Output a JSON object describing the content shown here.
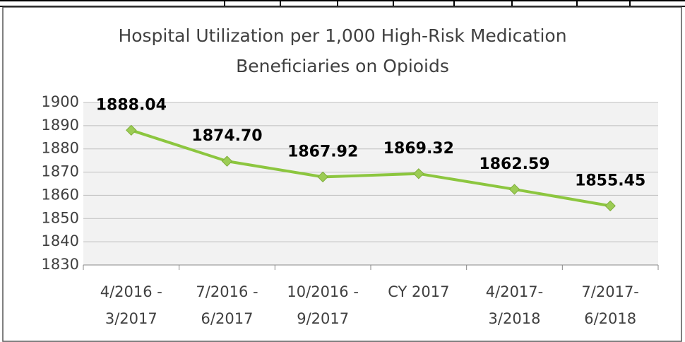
{
  "chart_data": {
    "type": "line",
    "title": [
      "Hospital Utilization per 1,000 High-Risk Medication",
      "Beneficiaries on Opioids"
    ],
    "categories": [
      [
        "4/2016 -",
        "3/2017"
      ],
      [
        "7/2016 -",
        "6/2017"
      ],
      [
        "10/2016 -",
        "9/2017"
      ],
      [
        "CY 2017"
      ],
      [
        "4/2017-",
        "3/2018"
      ],
      [
        "7/2017-",
        "6/2018"
      ]
    ],
    "series": [
      {
        "name": "Hospital Utilization",
        "color": "#8cc63f",
        "values": [
          1888.04,
          1874.7,
          1867.92,
          1869.32,
          1862.59,
          1855.45
        ],
        "value_labels": [
          "1888.04",
          "1874.70",
          "1867.92",
          "1869.32",
          "1862.59",
          "1855.45"
        ]
      }
    ],
    "ylim": [
      1830,
      1900
    ],
    "yticks": [
      1830,
      1840,
      1850,
      1860,
      1870,
      1880,
      1890,
      1900
    ],
    "grid": true
  }
}
